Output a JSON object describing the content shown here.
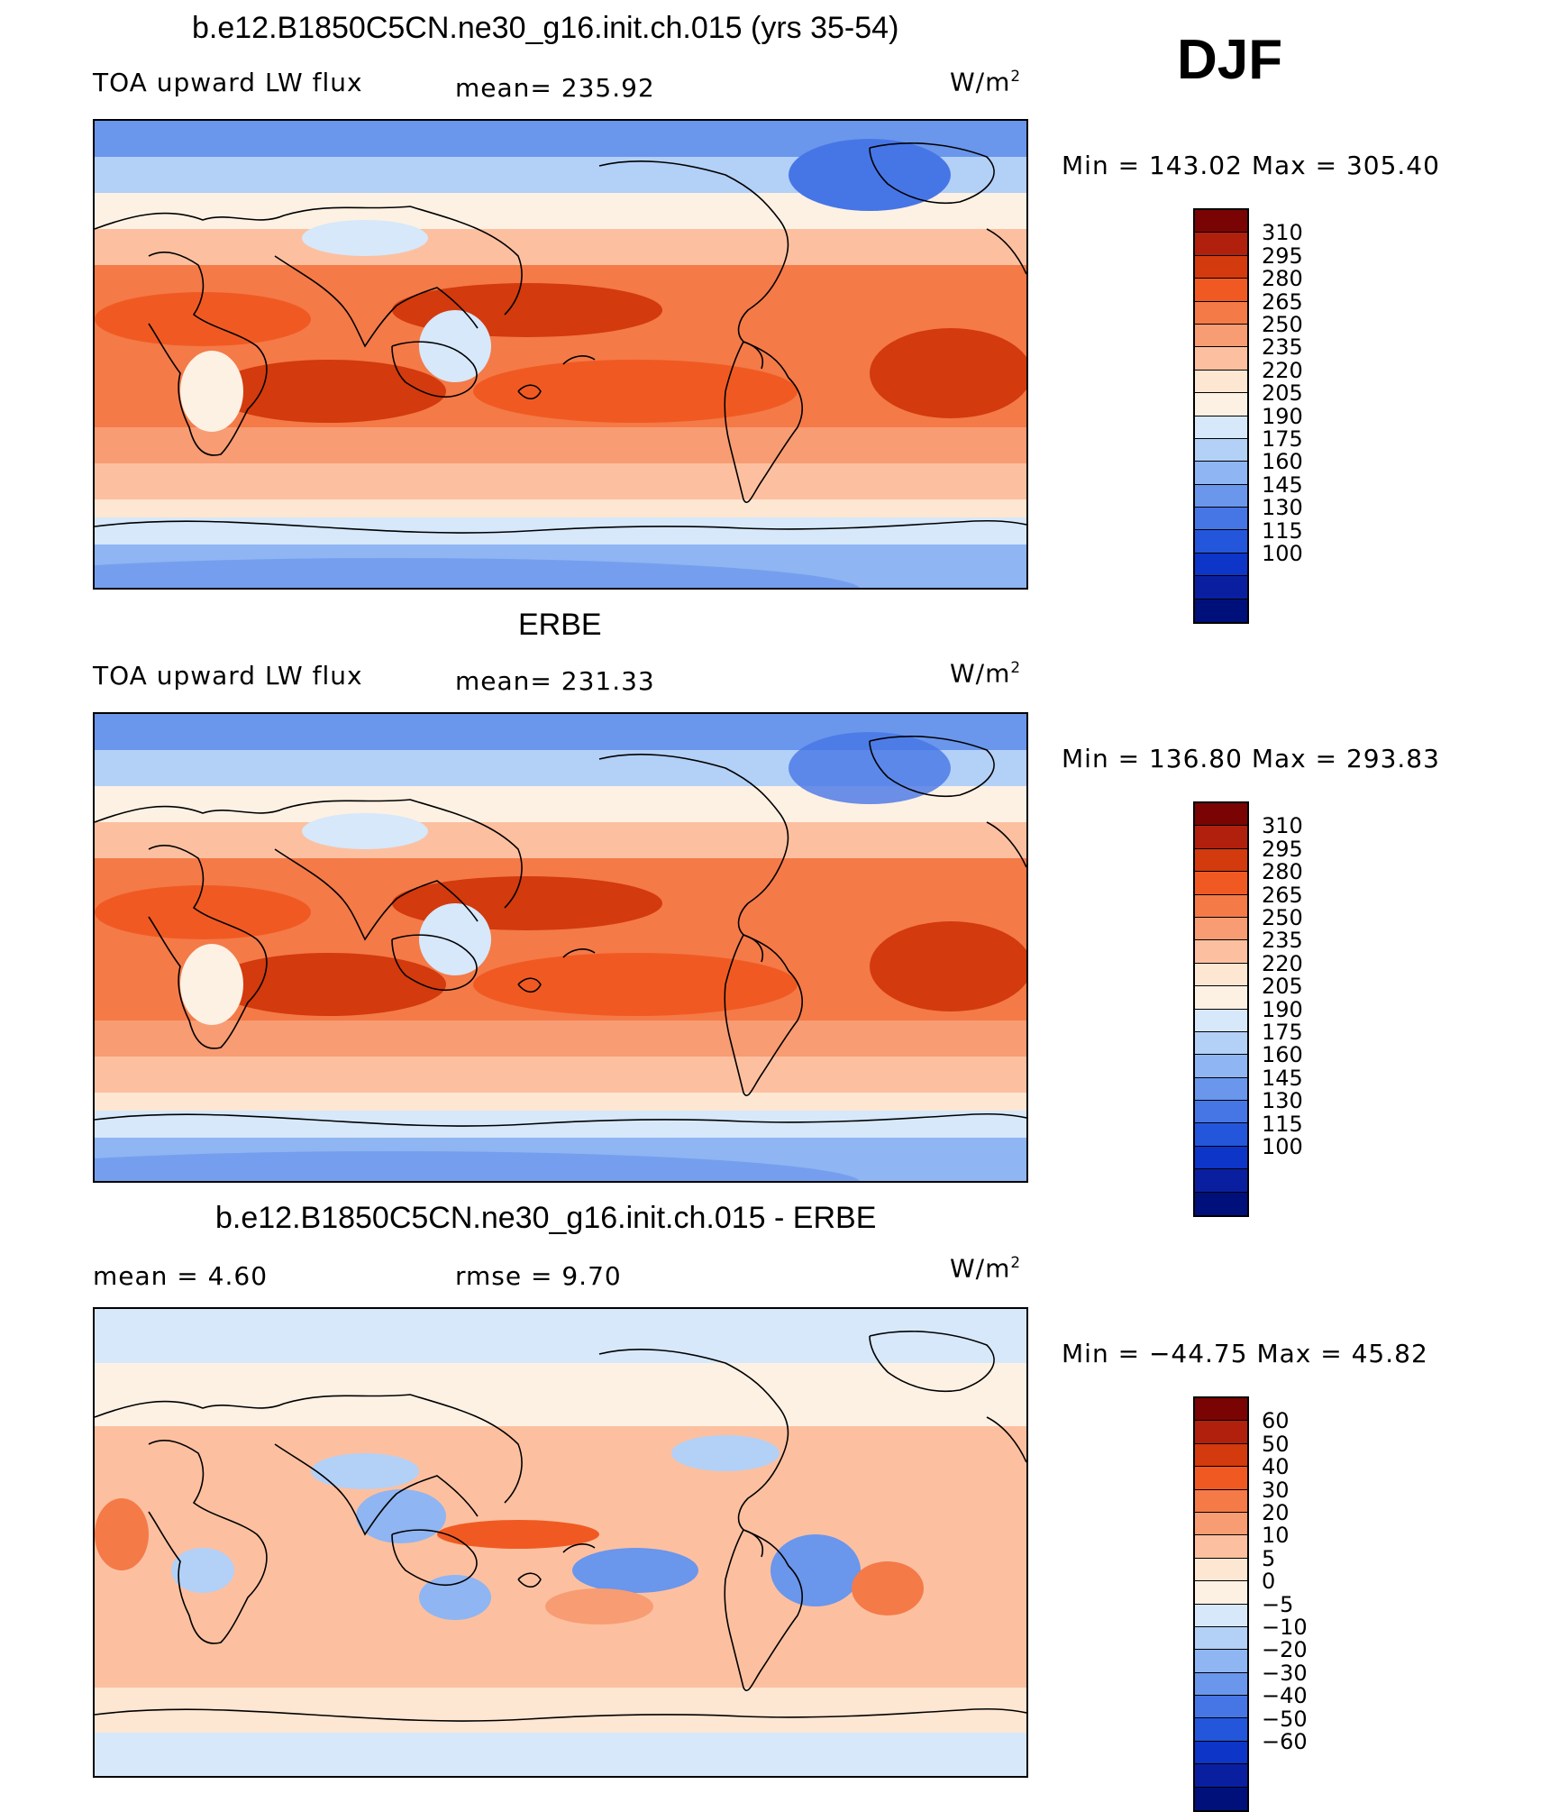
{
  "season": "DJF",
  "panels": [
    {
      "title": "b.e12.B1850C5CN.ne30_g16.init.ch.015 (yrs 35-54)",
      "left_label": "TOA upward LW flux",
      "center_label": "mean=  235.92",
      "units": "W/m",
      "units_sup": "2",
      "minmax": "Min  =  143.02  Max  =  305.40",
      "colorbar": {
        "labels": [
          "310",
          "295",
          "280",
          "265",
          "250",
          "235",
          "220",
          "205",
          "190",
          "175",
          "160",
          "145",
          "130",
          "115",
          "100"
        ],
        "colors": [
          "#7a0403",
          "#b0200c",
          "#d33a0d",
          "#f05a22",
          "#f47a48",
          "#f89c73",
          "#fcc0a0",
          "#fde6d2",
          "#fdf1e4",
          "#d6e8fa",
          "#b3d0f7",
          "#8fb5f2",
          "#6a96ec",
          "#4676e6",
          "#2456dc",
          "#0d35c7",
          "#0a1fa0",
          "#00107a"
        ]
      },
      "map_kind": "toa"
    },
    {
      "title": "ERBE",
      "left_label": "TOA upward LW flux",
      "center_label": "mean=  231.33",
      "units": "W/m",
      "units_sup": "2",
      "minmax": "Min  =  136.80  Max  =  293.83",
      "colorbar": {
        "labels": [
          "310",
          "295",
          "280",
          "265",
          "250",
          "235",
          "220",
          "205",
          "190",
          "175",
          "160",
          "145",
          "130",
          "115",
          "100"
        ],
        "colors": [
          "#7a0403",
          "#b0200c",
          "#d33a0d",
          "#f05a22",
          "#f47a48",
          "#f89c73",
          "#fcc0a0",
          "#fde6d2",
          "#fdf1e4",
          "#d6e8fa",
          "#b3d0f7",
          "#8fb5f2",
          "#6a96ec",
          "#4676e6",
          "#2456dc",
          "#0d35c7",
          "#0a1fa0",
          "#00107a"
        ]
      },
      "map_kind": "toa"
    },
    {
      "title": "b.e12.B1850C5CN.ne30_g16.init.ch.015 - ERBE",
      "left_label": "mean =      4.60",
      "center_label": "rmse =      9.70",
      "units": "W/m",
      "units_sup": "2",
      "minmax": "Min  =  −44.75  Max  =     45.82",
      "colorbar": {
        "labels": [
          "60",
          "50",
          "40",
          "30",
          "20",
          "10",
          "5",
          "0",
          "−5",
          "−10",
          "−20",
          "−30",
          "−40",
          "−50",
          "−60"
        ],
        "colors": [
          "#7a0403",
          "#b0200c",
          "#d33a0d",
          "#f05a22",
          "#f47a48",
          "#f89c73",
          "#fcc0a0",
          "#fde6d2",
          "#fdf1e4",
          "#d6e8fa",
          "#b3d0f7",
          "#8fb5f2",
          "#6a96ec",
          "#4676e6",
          "#2456dc",
          "#0d35c7",
          "#0a1fa0",
          "#00107a"
        ]
      },
      "map_kind": "diff"
    }
  ]
}
